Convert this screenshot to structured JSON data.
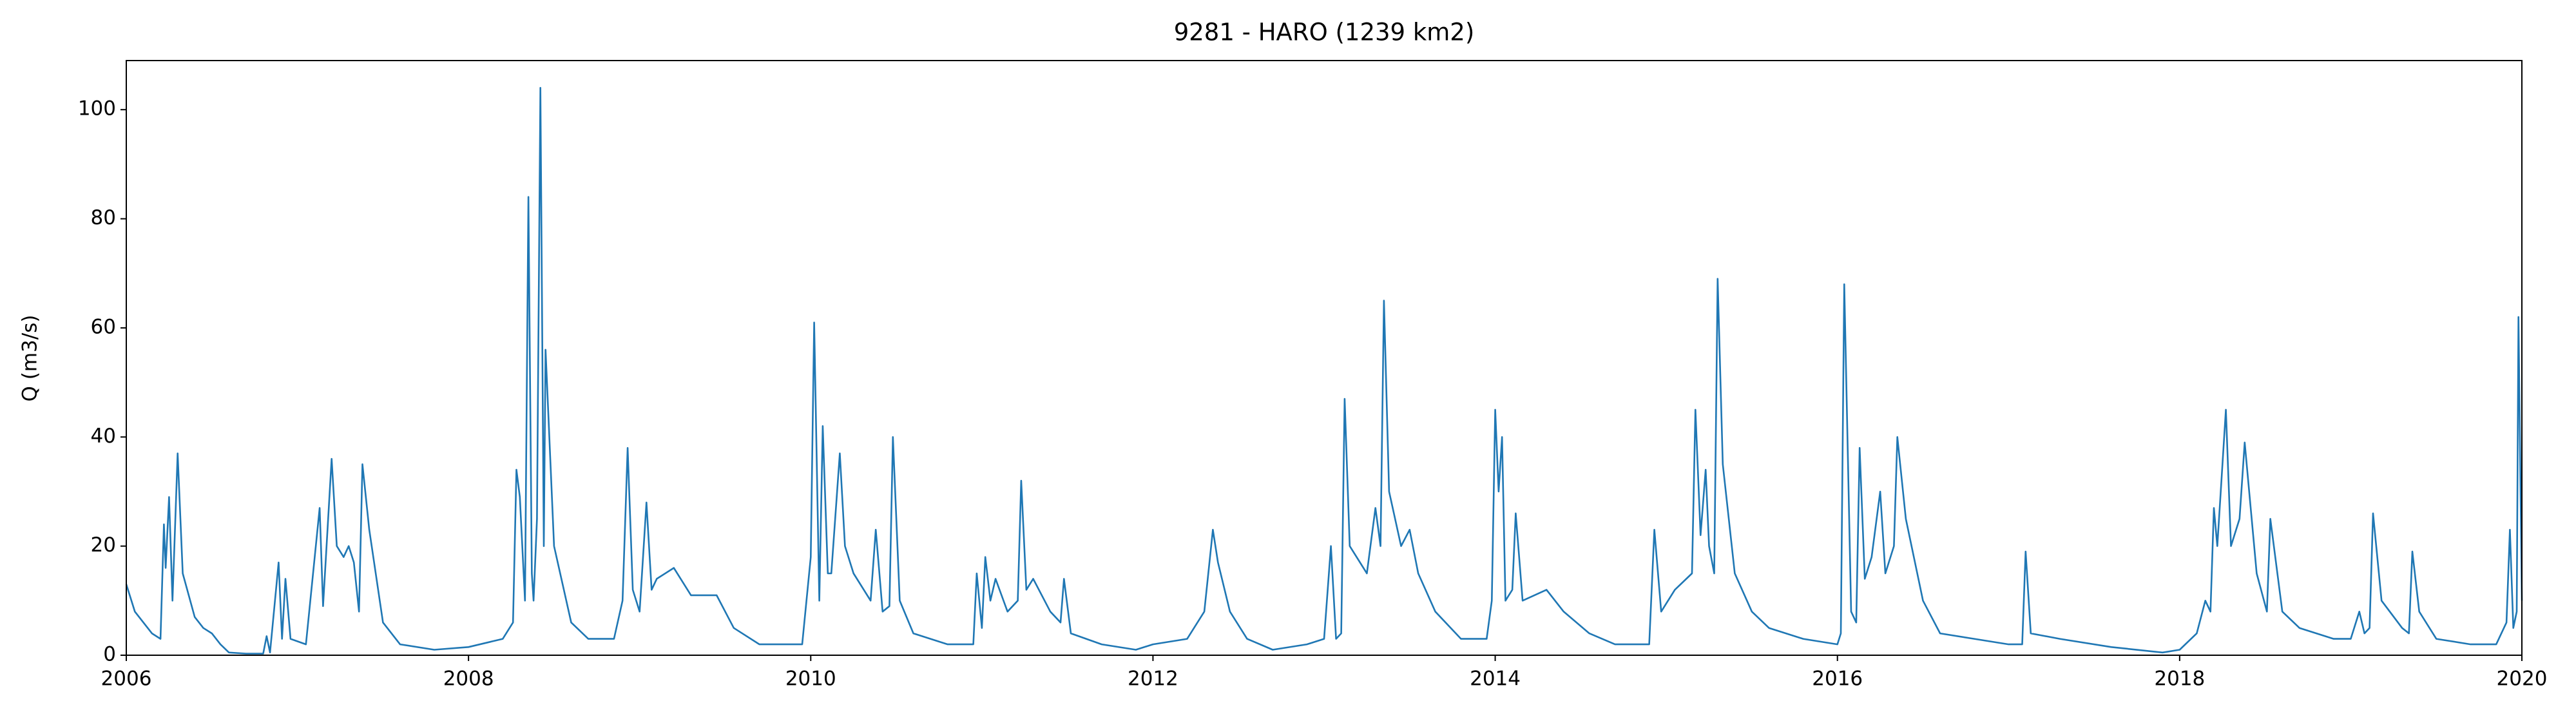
{
  "chart_data": {
    "type": "line",
    "title": "9281 - HARO (1239 km2)",
    "ylabel": "Q (m3/s)",
    "xlim": [
      2006,
      2020
    ],
    "xticks": [
      2006,
      2008,
      2010,
      2012,
      2014,
      2016,
      2018,
      2020
    ],
    "ylim": [
      0,
      109
    ],
    "yticks": [
      0,
      20,
      40,
      60,
      80,
      100
    ],
    "grid": false,
    "series": [
      {
        "name": "Q",
        "color": "#1f77b4",
        "x": [
          2006.0,
          2006.05,
          2006.15,
          2006.2,
          2006.22,
          2006.23,
          2006.25,
          2006.27,
          2006.3,
          2006.33,
          2006.4,
          2006.45,
          2006.5,
          2006.55,
          2006.6,
          2006.7,
          2006.8,
          2006.82,
          2006.84,
          2006.89,
          2006.91,
          2006.93,
          2006.96,
          2007.05,
          2007.13,
          2007.15,
          2007.2,
          2007.23,
          2007.27,
          2007.3,
          2007.33,
          2007.36,
          2007.38,
          2007.42,
          2007.5,
          2007.6,
          2007.8,
          2008.0,
          2008.2,
          2008.26,
          2008.28,
          2008.3,
          2008.33,
          2008.35,
          2008.37,
          2008.38,
          2008.4,
          2008.42,
          2008.44,
          2008.45,
          2008.5,
          2008.6,
          2008.7,
          2008.85,
          2008.9,
          2008.93,
          2008.96,
          2009.0,
          2009.04,
          2009.07,
          2009.1,
          2009.2,
          2009.3,
          2009.45,
          2009.55,
          2009.7,
          2009.95,
          2010.0,
          2010.02,
          2010.05,
          2010.07,
          2010.1,
          2010.12,
          2010.17,
          2010.2,
          2010.25,
          2010.35,
          2010.38,
          2010.42,
          2010.46,
          2010.48,
          2010.52,
          2010.6,
          2010.8,
          2010.95,
          2010.97,
          2011.0,
          2011.02,
          2011.05,
          2011.08,
          2011.15,
          2011.21,
          2011.23,
          2011.26,
          2011.3,
          2011.4,
          2011.46,
          2011.48,
          2011.52,
          2011.7,
          2011.9,
          2012.0,
          2012.2,
          2012.3,
          2012.35,
          2012.38,
          2012.45,
          2012.55,
          2012.7,
          2012.9,
          2013.0,
          2013.04,
          2013.07,
          2013.1,
          2013.12,
          2013.15,
          2013.25,
          2013.3,
          2013.33,
          2013.35,
          2013.38,
          2013.45,
          2013.5,
          2013.55,
          2013.65,
          2013.8,
          2013.95,
          2013.98,
          2014.0,
          2014.02,
          2014.04,
          2014.06,
          2014.1,
          2014.12,
          2014.16,
          2014.3,
          2014.4,
          2014.55,
          2014.7,
          2014.9,
          2014.93,
          2014.97,
          2015.05,
          2015.15,
          2015.17,
          2015.2,
          2015.23,
          2015.25,
          2015.28,
          2015.3,
          2015.33,
          2015.4,
          2015.5,
          2015.6,
          2015.8,
          2016.0,
          2016.02,
          2016.04,
          2016.08,
          2016.11,
          2016.13,
          2016.16,
          2016.2,
          2016.25,
          2016.28,
          2016.33,
          2016.35,
          2016.4,
          2016.5,
          2016.6,
          2016.8,
          2017.0,
          2017.08,
          2017.1,
          2017.13,
          2017.3,
          2017.6,
          2017.9,
          2018.0,
          2018.1,
          2018.15,
          2018.18,
          2018.2,
          2018.22,
          2018.25,
          2018.27,
          2018.3,
          2018.35,
          2018.38,
          2018.45,
          2018.51,
          2018.53,
          2018.6,
          2018.7,
          2018.9,
          2019.0,
          2019.05,
          2019.08,
          2019.11,
          2019.13,
          2019.18,
          2019.3,
          2019.34,
          2019.36,
          2019.4,
          2019.5,
          2019.7,
          2019.85,
          2019.91,
          2019.93,
          2019.95,
          2019.97,
          2019.98,
          2020.0
        ],
        "values": [
          13,
          8,
          4,
          3,
          24,
          16,
          29,
          10,
          37,
          15,
          7,
          5,
          4,
          2,
          0.5,
          0.3,
          0.3,
          3.5,
          0.5,
          17,
          3,
          14,
          3,
          2,
          27,
          9,
          36,
          20,
          18,
          20,
          17,
          8,
          35,
          23,
          6,
          2,
          1,
          1.5,
          3,
          6,
          34,
          29,
          10,
          84,
          15,
          10,
          25,
          104,
          20,
          56,
          20,
          6,
          3,
          3,
          10,
          38,
          12,
          8,
          28,
          12,
          14,
          16,
          11,
          11,
          5,
          2,
          2,
          18,
          61,
          10,
          42,
          15,
          15,
          37,
          20,
          15,
          10,
          23,
          8,
          9,
          40,
          10,
          4,
          2,
          2,
          15,
          5,
          18,
          10,
          14,
          8,
          10,
          32,
          12,
          14,
          8,
          6,
          14,
          4,
          2,
          1,
          2,
          3,
          8,
          23,
          17,
          8,
          3,
          1,
          2,
          3,
          20,
          3,
          4,
          47,
          20,
          15,
          27,
          20,
          65,
          30,
          20,
          23,
          15,
          8,
          3,
          3,
          10,
          45,
          30,
          40,
          10,
          12,
          26,
          10,
          12,
          8,
          4,
          2,
          2,
          23,
          8,
          12,
          15,
          45,
          22,
          34,
          20,
          15,
          69,
          35,
          15,
          8,
          5,
          3,
          2,
          4,
          68,
          8,
          6,
          38,
          14,
          18,
          30,
          15,
          20,
          40,
          25,
          10,
          4,
          3,
          2,
          2,
          19,
          4,
          3,
          1.5,
          0.5,
          1,
          4,
          10,
          8,
          27,
          20,
          35,
          45,
          20,
          25,
          39,
          15,
          8,
          25,
          8,
          5,
          3,
          3,
          8,
          4,
          5,
          26,
          10,
          5,
          4,
          19,
          8,
          3,
          2,
          2,
          6,
          23,
          5,
          8,
          62,
          10
        ]
      }
    ]
  }
}
